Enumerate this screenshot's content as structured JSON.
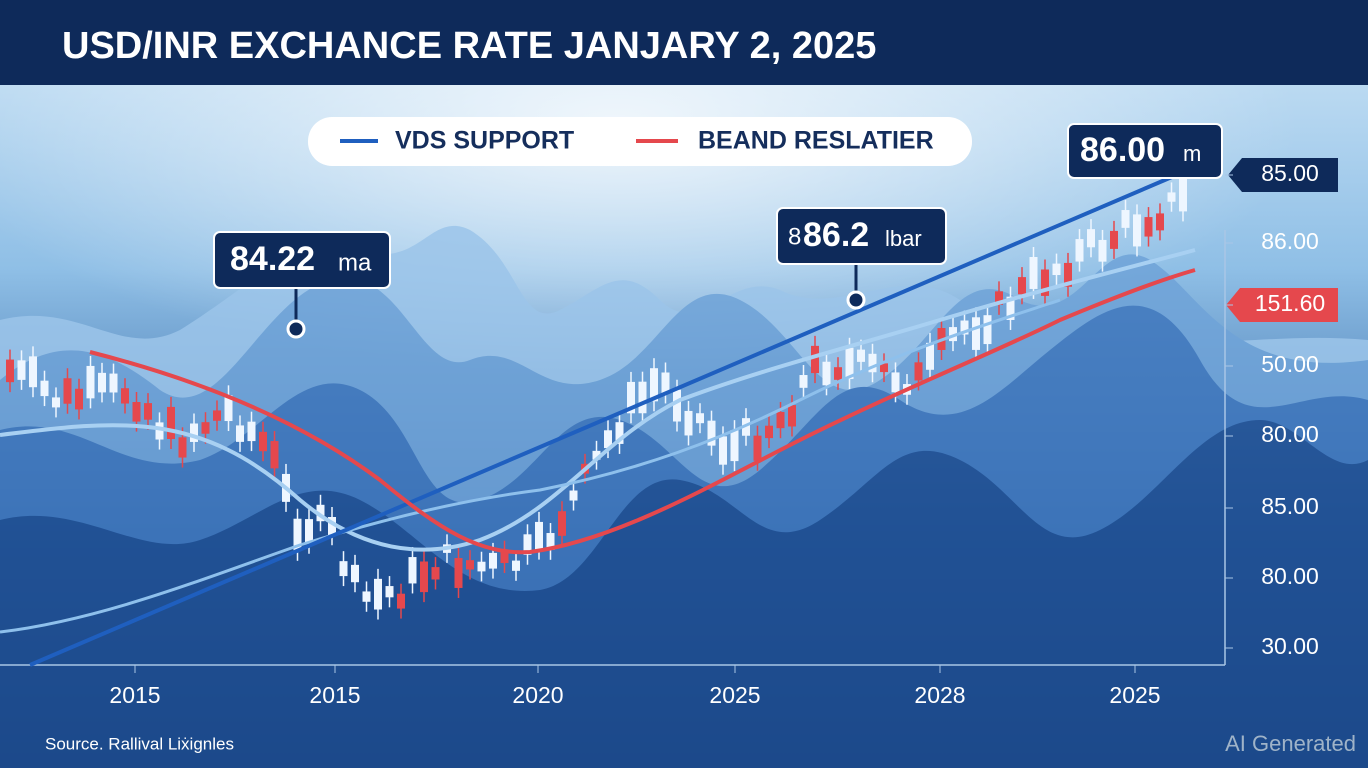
{
  "title": "USD/INR EXCHANCE RATE JANJARY 2, 2025",
  "legend": [
    {
      "label": "VDS SUPPORT",
      "color": "#1f5fbf"
    },
    {
      "label": "BEAND RESLATIER",
      "color": "#e5484d"
    }
  ],
  "callouts": [
    {
      "main": "84.22",
      "suffix": "ma"
    },
    {
      "prefix": "8",
      "main": "86.2",
      "suffix": "lbar"
    },
    {
      "main": "86.00",
      "suffix": "m"
    }
  ],
  "y_labels": [
    "85.00",
    "86.00",
    "151.60",
    "50.00",
    "80.00",
    "85.00",
    "80.00",
    "30.00"
  ],
  "x_labels": [
    "2015",
    "2015",
    "2020",
    "2025",
    "2028",
    "2025"
  ],
  "source": "Source. Rallival Liẋignles",
  "watermark": "AI Generated"
}
